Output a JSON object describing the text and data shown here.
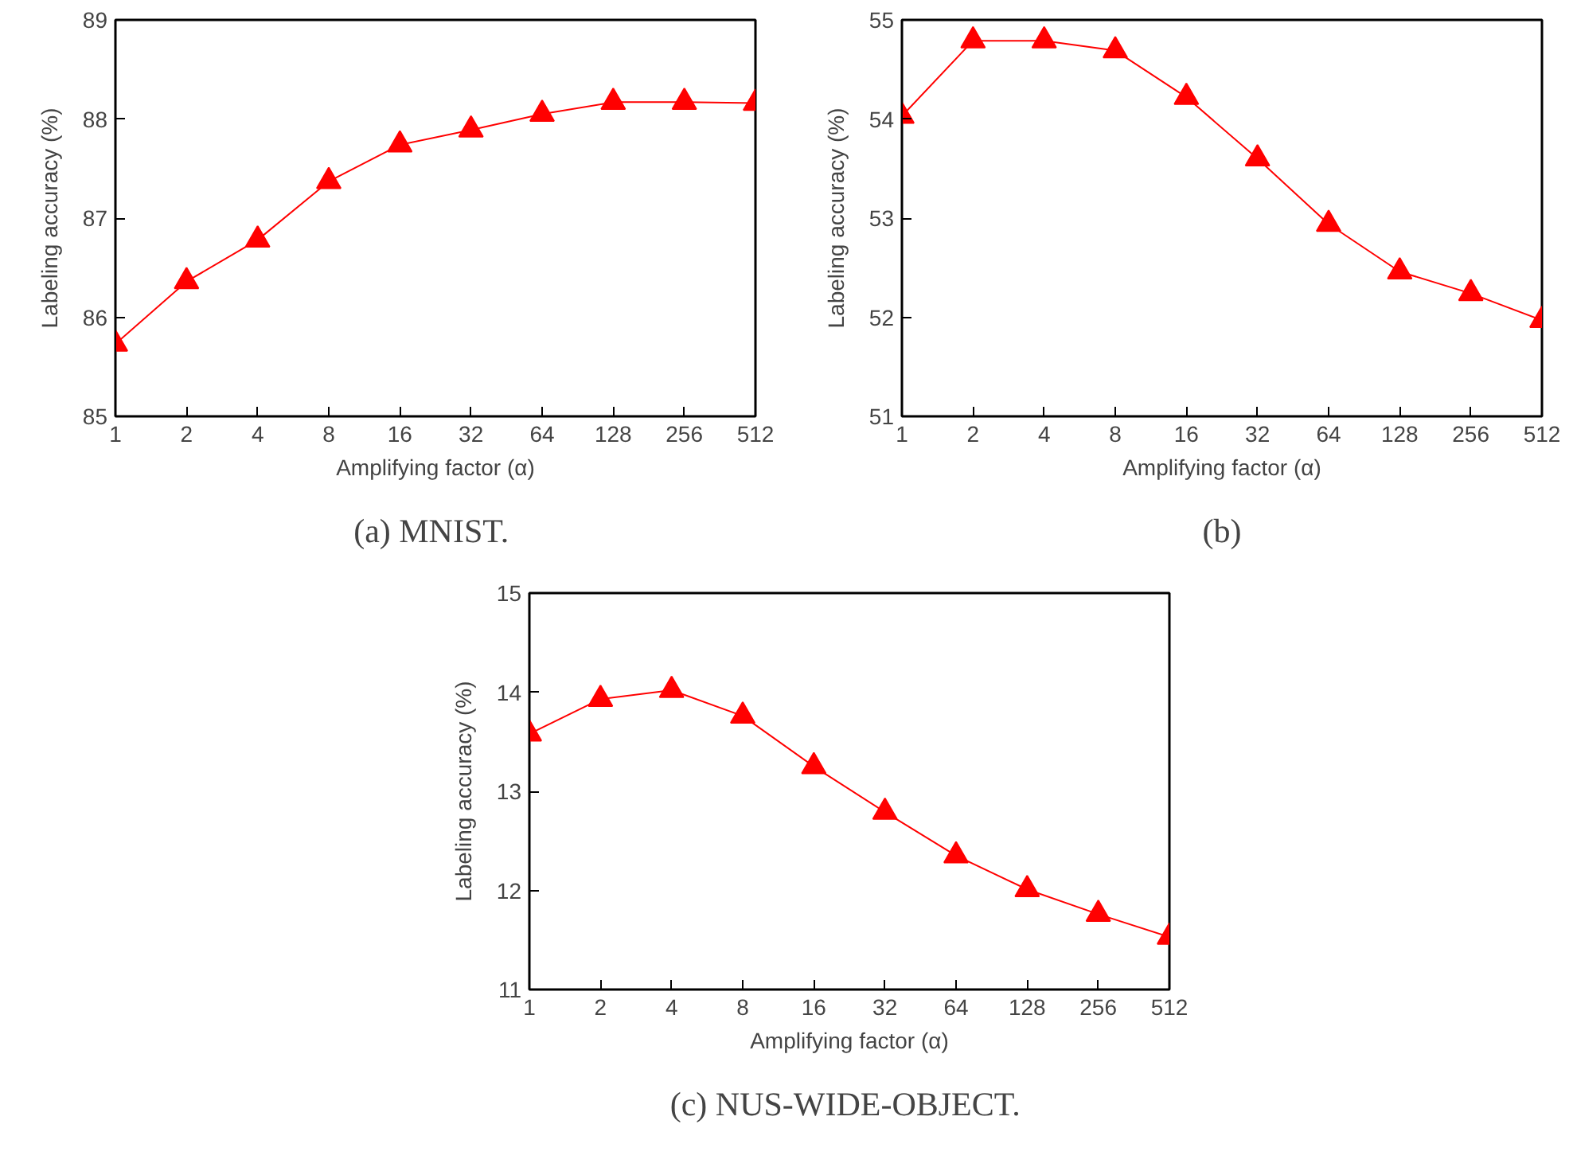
{
  "chart_data": [
    {
      "type": "line",
      "title": "(a)  MNIST.",
      "xlabel": "Amplifying factor (α)",
      "ylabel": "Labeling accuracy (%)",
      "categories": [
        "1",
        "2",
        "4",
        "8",
        "16",
        "32",
        "64",
        "128",
        "256",
        "512"
      ],
      "marker": "triangle",
      "ylim": [
        85,
        89
      ],
      "yticks": [
        85,
        86,
        87,
        88,
        89
      ],
      "series": [
        {
          "color": "#ff0000",
          "values": [
            85.73,
            86.36,
            86.78,
            87.37,
            87.74,
            87.89,
            88.05,
            88.17,
            88.17,
            88.16
          ]
        }
      ]
    },
    {
      "type": "line",
      "title": "(b)",
      "xlabel": "Amplifying factor (α)",
      "ylabel": "Labeling accuracy (%)",
      "categories": [
        "1",
        "2",
        "4",
        "8",
        "16",
        "32",
        "64",
        "128",
        "256",
        "512"
      ],
      "marker": "triangle",
      "ylim": [
        51,
        55
      ],
      "yticks": [
        51,
        52,
        53,
        54,
        55
      ],
      "series": [
        {
          "color": "#ff0000",
          "values": [
            54.03,
            54.79,
            54.79,
            54.69,
            54.22,
            53.6,
            52.94,
            52.46,
            52.24,
            51.97
          ]
        }
      ]
    },
    {
      "type": "line",
      "title": "(c)  NUS-WIDE-OBJECT.",
      "xlabel": "Amplifying factor (α)",
      "ylabel": "Labeling accuracy (%)",
      "categories": [
        "1",
        "2",
        "4",
        "8",
        "16",
        "32",
        "64",
        "128",
        "256",
        "512"
      ],
      "marker": "triangle",
      "ylim": [
        11,
        15
      ],
      "yticks": [
        11,
        12,
        13,
        14,
        15
      ],
      "series": [
        {
          "color": "#ff0000",
          "values": [
            13.58,
            13.93,
            14.02,
            13.76,
            13.25,
            12.79,
            12.35,
            12.01,
            11.76,
            11.53
          ]
        }
      ]
    }
  ]
}
